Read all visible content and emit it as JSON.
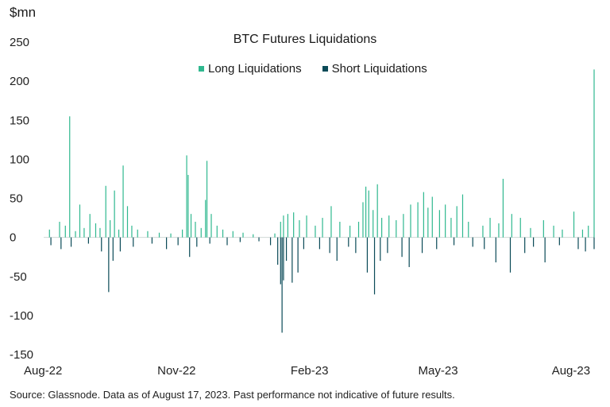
{
  "chart_data": {
    "type": "bar",
    "title": "BTC Futures Liquidations",
    "ylabel": "$mn",
    "ylim": [
      -150,
      250
    ],
    "yticks": [
      250,
      200,
      150,
      100,
      50,
      0,
      -50,
      -100,
      -150
    ],
    "xlim": [
      "2022-08-01",
      "2023-08-17"
    ],
    "xticks": [
      {
        "date": "2022-08-01",
        "label": "Aug-22"
      },
      {
        "date": "2022-11-01",
        "label": "Nov-22"
      },
      {
        "date": "2023-02-01",
        "label": "Feb-23"
      },
      {
        "date": "2023-05-01",
        "label": "May-23"
      },
      {
        "date": "2023-08-01",
        "label": "Aug-23"
      }
    ],
    "grid": false,
    "legend_position": "top-center",
    "series": [
      {
        "name": "Long Liquidations",
        "color": "#2fb88f",
        "points": [
          [
            "2022-08-05",
            10
          ],
          [
            "2022-08-12",
            20
          ],
          [
            "2022-08-16",
            15
          ],
          [
            "2022-08-19",
            155
          ],
          [
            "2022-08-23",
            8
          ],
          [
            "2022-08-26",
            42
          ],
          [
            "2022-08-29",
            12
          ],
          [
            "2022-09-02",
            30
          ],
          [
            "2022-09-06",
            18
          ],
          [
            "2022-09-09",
            12
          ],
          [
            "2022-09-13",
            66
          ],
          [
            "2022-09-16",
            22
          ],
          [
            "2022-09-19",
            60
          ],
          [
            "2022-09-22",
            10
          ],
          [
            "2022-09-25",
            92
          ],
          [
            "2022-09-28",
            40
          ],
          [
            "2022-10-01",
            15
          ],
          [
            "2022-10-05",
            10
          ],
          [
            "2022-10-12",
            8
          ],
          [
            "2022-10-20",
            6
          ],
          [
            "2022-10-28",
            5
          ],
          [
            "2022-11-05",
            10
          ],
          [
            "2022-11-08",
            105
          ],
          [
            "2022-11-09",
            80
          ],
          [
            "2022-11-11",
            30
          ],
          [
            "2022-11-14",
            20
          ],
          [
            "2022-11-18",
            12
          ],
          [
            "2022-11-21",
            48
          ],
          [
            "2022-11-22",
            98
          ],
          [
            "2022-11-25",
            30
          ],
          [
            "2022-11-29",
            15
          ],
          [
            "2022-12-03",
            10
          ],
          [
            "2022-12-10",
            8
          ],
          [
            "2022-12-17",
            6
          ],
          [
            "2022-12-24",
            4
          ],
          [
            "2023-01-08",
            5
          ],
          [
            "2023-01-12",
            20
          ],
          [
            "2023-01-14",
            28
          ],
          [
            "2023-01-17",
            30
          ],
          [
            "2023-01-21",
            32
          ],
          [
            "2023-01-25",
            22
          ],
          [
            "2023-01-30",
            28
          ],
          [
            "2023-02-05",
            15
          ],
          [
            "2023-02-10",
            25
          ],
          [
            "2023-02-16",
            40
          ],
          [
            "2023-02-22",
            20
          ],
          [
            "2023-03-01",
            15
          ],
          [
            "2023-03-07",
            20
          ],
          [
            "2023-03-10",
            45
          ],
          [
            "2023-03-12",
            65
          ],
          [
            "2023-03-14",
            60
          ],
          [
            "2023-03-17",
            35
          ],
          [
            "2023-03-20",
            68
          ],
          [
            "2023-03-23",
            25
          ],
          [
            "2023-03-28",
            28
          ],
          [
            "2023-04-02",
            22
          ],
          [
            "2023-04-07",
            30
          ],
          [
            "2023-04-12",
            42
          ],
          [
            "2023-04-17",
            45
          ],
          [
            "2023-04-21",
            58
          ],
          [
            "2023-04-24",
            38
          ],
          [
            "2023-04-27",
            52
          ],
          [
            "2023-05-02",
            35
          ],
          [
            "2023-05-06",
            42
          ],
          [
            "2023-05-10",
            25
          ],
          [
            "2023-05-14",
            40
          ],
          [
            "2023-05-18",
            55
          ],
          [
            "2023-05-22",
            20
          ],
          [
            "2023-06-01",
            15
          ],
          [
            "2023-06-06",
            25
          ],
          [
            "2023-06-12",
            18
          ],
          [
            "2023-06-15",
            75
          ],
          [
            "2023-06-21",
            30
          ],
          [
            "2023-06-27",
            25
          ],
          [
            "2023-07-04",
            12
          ],
          [
            "2023-07-13",
            22
          ],
          [
            "2023-07-20",
            15
          ],
          [
            "2023-07-26",
            10
          ],
          [
            "2023-08-03",
            33
          ],
          [
            "2023-08-09",
            10
          ],
          [
            "2023-08-13",
            15
          ],
          [
            "2023-08-17",
            215
          ]
        ]
      },
      {
        "name": "Short Liquidations",
        "color": "#0a4a57",
        "points": [
          [
            "2022-08-06",
            -10
          ],
          [
            "2022-08-13",
            -15
          ],
          [
            "2022-08-20",
            -12
          ],
          [
            "2022-09-01",
            -8
          ],
          [
            "2022-09-10",
            -18
          ],
          [
            "2022-09-15",
            -70
          ],
          [
            "2022-09-18",
            -30
          ],
          [
            "2022-09-23",
            -18
          ],
          [
            "2022-10-02",
            -12
          ],
          [
            "2022-10-15",
            -8
          ],
          [
            "2022-10-25",
            -15
          ],
          [
            "2022-11-02",
            -10
          ],
          [
            "2022-11-10",
            -25
          ],
          [
            "2022-11-15",
            -12
          ],
          [
            "2022-11-24",
            -8
          ],
          [
            "2022-12-06",
            -10
          ],
          [
            "2022-12-15",
            -6
          ],
          [
            "2022-12-28",
            -5
          ],
          [
            "2023-01-05",
            -10
          ],
          [
            "2023-01-10",
            -35
          ],
          [
            "2023-01-12",
            -60
          ],
          [
            "2023-01-13",
            -122
          ],
          [
            "2023-01-14",
            -55
          ],
          [
            "2023-01-16",
            -30
          ],
          [
            "2023-01-20",
            -58
          ],
          [
            "2023-01-24",
            -45
          ],
          [
            "2023-01-28",
            -15
          ],
          [
            "2023-02-08",
            -15
          ],
          [
            "2023-02-15",
            -20
          ],
          [
            "2023-02-20",
            -30
          ],
          [
            "2023-02-28",
            -12
          ],
          [
            "2023-03-05",
            -20
          ],
          [
            "2023-03-13",
            -45
          ],
          [
            "2023-03-18",
            -73
          ],
          [
            "2023-03-22",
            -30
          ],
          [
            "2023-03-27",
            -20
          ],
          [
            "2023-04-06",
            -25
          ],
          [
            "2023-04-11",
            -38
          ],
          [
            "2023-04-20",
            -20
          ],
          [
            "2023-04-30",
            -15
          ],
          [
            "2023-05-12",
            -10
          ],
          [
            "2023-05-25",
            -12
          ],
          [
            "2023-06-02",
            -15
          ],
          [
            "2023-06-10",
            -32
          ],
          [
            "2023-06-20",
            -45
          ],
          [
            "2023-06-30",
            -20
          ],
          [
            "2023-07-06",
            -12
          ],
          [
            "2023-07-14",
            -32
          ],
          [
            "2023-07-24",
            -10
          ],
          [
            "2023-08-06",
            -15
          ],
          [
            "2023-08-11",
            -18
          ],
          [
            "2023-08-17",
            -15
          ]
        ]
      }
    ],
    "footnote": "Source: Glassnode. Data as of August 17, 2023. Past performance not indicative of future results."
  }
}
